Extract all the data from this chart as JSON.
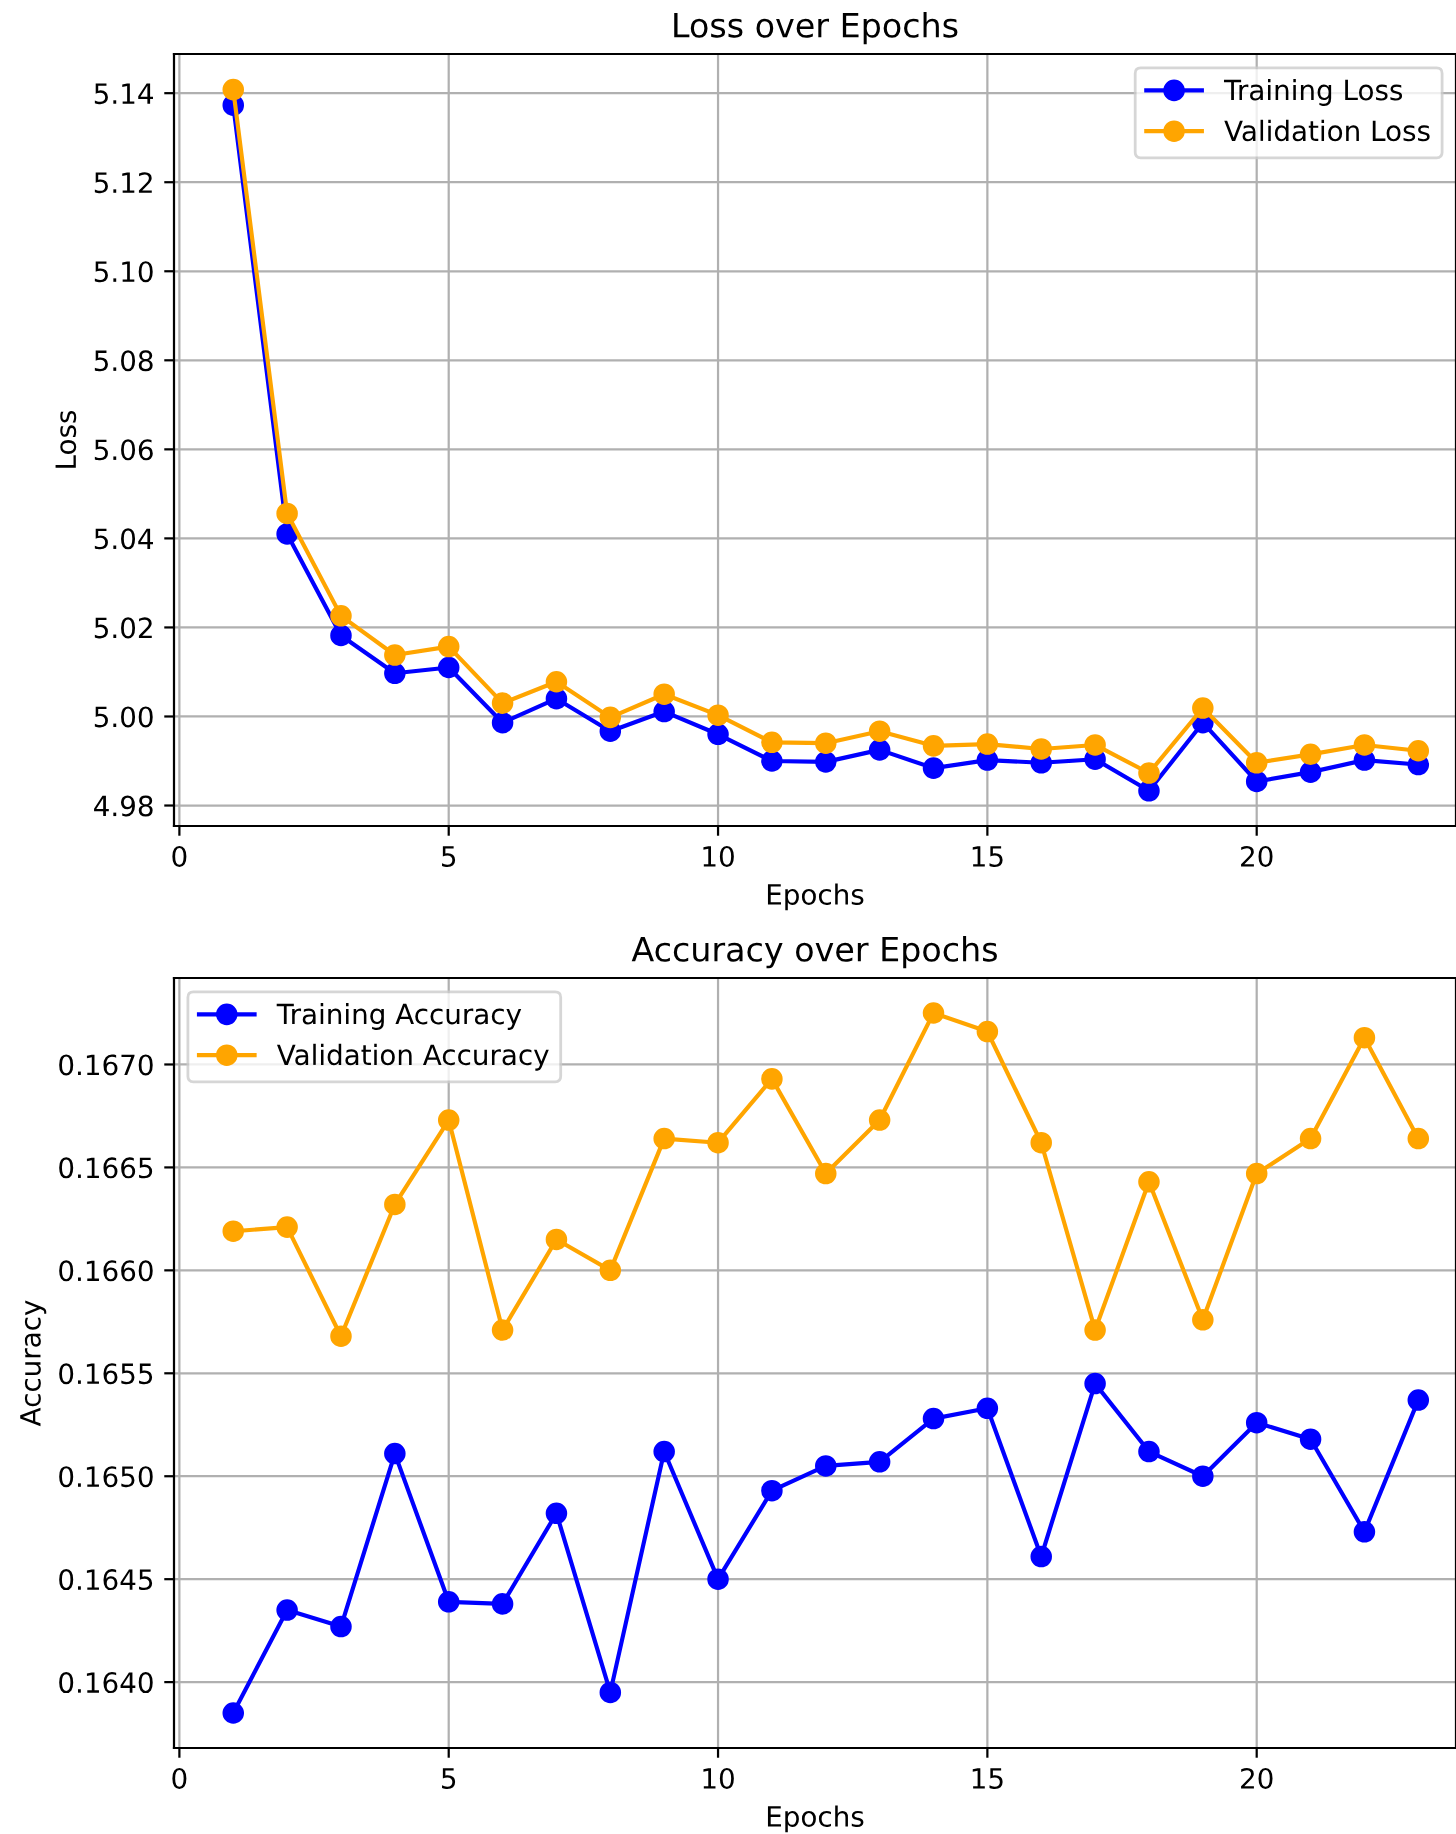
{
  "chart_data": [
    {
      "type": "line",
      "title": "Loss over Epochs",
      "xlabel": "Epochs",
      "ylabel": "Loss",
      "x": [
        1,
        2,
        3,
        4,
        5,
        6,
        7,
        8,
        9,
        10,
        11,
        12,
        13,
        14,
        15,
        16,
        17,
        18,
        19,
        20,
        21,
        22,
        23
      ],
      "series": [
        {
          "name": "Training Loss",
          "color": "#0000ff",
          "values": [
            5.1373,
            5.041,
            5.0182,
            5.0097,
            5.011,
            4.9986,
            5.004,
            4.9967,
            5.0011,
            4.996,
            4.99,
            4.9898,
            4.9925,
            4.9884,
            4.9902,
            4.9896,
            4.9904,
            4.9833,
            4.9986,
            4.9854,
            4.9875,
            4.9902,
            4.9892
          ]
        },
        {
          "name": "Validation Loss",
          "color": "#ffa500",
          "values": [
            5.1408,
            5.0456,
            5.0226,
            5.0138,
            5.0157,
            5.003,
            5.0078,
            4.9998,
            5.005,
            5.0003,
            4.9942,
            4.994,
            4.9967,
            4.9934,
            4.9938,
            4.9927,
            4.9936,
            4.9873,
            5.0019,
            4.9896,
            4.9915,
            4.9936,
            4.9923
          ]
        }
      ],
      "xlim": [
        -0.1,
        23.7
      ],
      "xticks": [
        0,
        5,
        10,
        15,
        20
      ],
      "ylim": [
        4.9754,
        5.1488
      ],
      "yticks": [
        {
          "value": 4.98,
          "label": "4.98"
        },
        {
          "value": 5.0,
          "label": "5.00"
        },
        {
          "value": 5.02,
          "label": "5.02"
        },
        {
          "value": 5.04,
          "label": "5.04"
        },
        {
          "value": 5.06,
          "label": "5.06"
        },
        {
          "value": 5.08,
          "label": "5.08"
        },
        {
          "value": 5.1,
          "label": "5.10"
        },
        {
          "value": 5.12,
          "label": "5.12"
        },
        {
          "value": 5.14,
          "label": "5.14"
        }
      ],
      "grid": true,
      "legend": "top right",
      "marker": "circle",
      "line_style": "solid"
    },
    {
      "type": "line",
      "title": "Accuracy over Epochs",
      "xlabel": "Epochs",
      "ylabel": "Accuracy",
      "x": [
        1,
        2,
        3,
        4,
        5,
        6,
        7,
        8,
        9,
        10,
        11,
        12,
        13,
        14,
        15,
        16,
        17,
        18,
        19,
        20,
        21,
        22,
        23
      ],
      "series": [
        {
          "name": "Training Accuracy",
          "color": "#0000ff",
          "values": [
            0.16385,
            0.16435,
            0.16427,
            0.16511,
            0.16439,
            0.16438,
            0.16482,
            0.16395,
            0.16512,
            0.1645,
            0.16493,
            0.16505,
            0.16507,
            0.16528,
            0.16533,
            0.16461,
            0.16545,
            0.16512,
            0.165,
            0.16526,
            0.16518,
            0.16473,
            0.16537
          ]
        },
        {
          "name": "Validation Accuracy",
          "color": "#ffa500",
          "values": [
            0.16619,
            0.16621,
            0.16568,
            0.16632,
            0.16673,
            0.16571,
            0.16615,
            0.166,
            0.16664,
            0.16662,
            0.16693,
            0.16647,
            0.16673,
            0.16725,
            0.16716,
            0.16662,
            0.16571,
            0.16643,
            0.16576,
            0.16647,
            0.16664,
            0.16713,
            0.16664
          ]
        }
      ],
      "xlim": [
        -0.1,
        23.7
      ],
      "xticks": [
        0,
        5,
        10,
        15,
        20
      ],
      "ylim": [
        0.16368,
        0.16742
      ],
      "yticks": [
        {
          "value": 0.164,
          "label": "0.1640"
        },
        {
          "value": 0.1645,
          "label": "0.1645"
        },
        {
          "value": 0.165,
          "label": "0.1650"
        },
        {
          "value": 0.1655,
          "label": "0.1655"
        },
        {
          "value": 0.166,
          "label": "0.1660"
        },
        {
          "value": 0.1665,
          "label": "0.1665"
        },
        {
          "value": 0.167,
          "label": "0.1670"
        }
      ],
      "grid": true,
      "legend": "top left",
      "marker": "circle",
      "line_style": "solid"
    }
  ]
}
